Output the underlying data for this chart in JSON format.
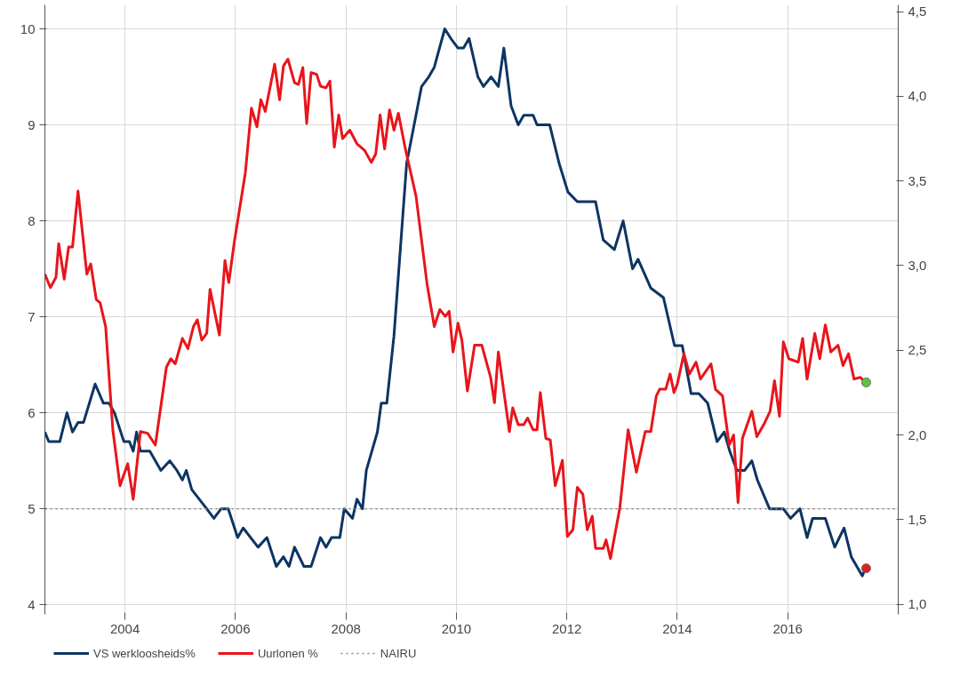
{
  "chart_data": {
    "type": "line",
    "xlim": [
      2002.55,
      2018.0
    ],
    "xticks": [
      2004,
      2006,
      2008,
      2010,
      2012,
      2014,
      2016
    ],
    "ylim": [
      3.9,
      10.25
    ],
    "yticks": [
      4,
      5,
      6,
      7,
      8,
      9,
      10
    ],
    "y2lim": [
      0.94,
      4.54
    ],
    "y2ticks": [
      {
        "value": 1.0,
        "label": "1,0"
      },
      {
        "value": 1.5,
        "label": "1,5"
      },
      {
        "value": 2.0,
        "label": "2,0"
      },
      {
        "value": 2.5,
        "label": "2,5"
      },
      {
        "value": 3.0,
        "label": "3,0"
      },
      {
        "value": 3.5,
        "label": "3,5"
      },
      {
        "value": 4.0,
        "label": "4,0"
      },
      {
        "value": 4.5,
        "label": "4,5"
      }
    ],
    "grid": true,
    "legend": "bottom left",
    "line_style": "solid",
    "series": [
      {
        "name": "VS werkloosheids%",
        "color": "#0d3563",
        "x": [
          2002.55,
          2002.62,
          2002.82,
          2002.95,
          2003.05,
          2003.15,
          2003.25,
          2003.46,
          2003.61,
          2003.71,
          2003.81,
          2003.98,
          2004.08,
          2004.15,
          2004.21,
          2004.28,
          2004.45,
          2004.65,
          2004.81,
          2004.94,
          2005.04,
          2005.11,
          2005.21,
          2005.48,
          2005.61,
          2005.74,
          2005.87,
          2006.04,
          2006.14,
          2006.41,
          2006.57,
          2006.74,
          2006.87,
          2006.97,
          2007.07,
          2007.24,
          2007.37,
          2007.54,
          2007.64,
          2007.74,
          2007.89,
          2007.97,
          2008.12,
          2008.2,
          2008.3,
          2008.37,
          2008.57,
          2008.64,
          2008.74,
          2008.87,
          2009.1,
          2009.37,
          2009.5,
          2009.6,
          2009.79,
          2009.9,
          2010.03,
          2010.13,
          2010.23,
          2010.39,
          2010.49,
          2010.63,
          2010.76,
          2010.86,
          2010.99,
          2011.12,
          2011.22,
          2011.39,
          2011.46,
          2011.69,
          2011.86,
          2012.02,
          2012.19,
          2012.52,
          2012.66,
          2012.86,
          2013.02,
          2013.19,
          2013.29,
          2013.52,
          2013.75,
          2013.95,
          2014.09,
          2014.25,
          2014.39,
          2014.55,
          2014.72,
          2014.85,
          2014.95,
          2015.08,
          2015.22,
          2015.35,
          2015.45,
          2015.67,
          2015.92,
          2016.05,
          2016.22,
          2016.35,
          2016.45,
          2016.68,
          2016.85,
          2017.02,
          2017.15,
          2017.35,
          2017.42
        ],
        "values": [
          5.8,
          5.7,
          5.7,
          6.0,
          5.8,
          5.9,
          5.9,
          6.3,
          6.1,
          6.1,
          6.0,
          5.7,
          5.7,
          5.6,
          5.8,
          5.6,
          5.6,
          5.4,
          5.5,
          5.4,
          5.3,
          5.4,
          5.2,
          5.0,
          4.9,
          5.0,
          5.0,
          4.7,
          4.8,
          4.6,
          4.7,
          4.4,
          4.5,
          4.4,
          4.6,
          4.4,
          4.4,
          4.7,
          4.6,
          4.7,
          4.7,
          5.0,
          4.9,
          5.1,
          5.0,
          5.4,
          5.8,
          6.1,
          6.1,
          6.8,
          8.6,
          9.4,
          9.5,
          9.6,
          10.0,
          9.9,
          9.8,
          9.8,
          9.9,
          9.5,
          9.4,
          9.5,
          9.4,
          9.8,
          9.2,
          9.0,
          9.1,
          9.1,
          9.0,
          9.0,
          8.6,
          8.3,
          8.2,
          8.2,
          7.8,
          7.7,
          8.0,
          7.5,
          7.6,
          7.3,
          7.2,
          6.7,
          6.7,
          6.2,
          6.2,
          6.1,
          5.7,
          5.8,
          5.6,
          5.4,
          5.4,
          5.5,
          5.3,
          5.0,
          5.0,
          4.9,
          5.0,
          4.7,
          4.9,
          4.9,
          4.6,
          4.8,
          4.5,
          4.3,
          4.4
        ]
      },
      {
        "name": "Uurlonen %",
        "axis": "y2",
        "color": "#e8151b",
        "x": [
          2002.55,
          2002.65,
          2002.75,
          2002.8,
          2002.9,
          2002.98,
          2003.05,
          2003.15,
          2003.31,
          2003.38,
          2003.48,
          2003.55,
          2003.65,
          2003.78,
          2003.91,
          2004.05,
          2004.15,
          2004.28,
          2004.41,
          2004.55,
          2004.75,
          2004.83,
          2004.91,
          2005.04,
          2005.14,
          2005.24,
          2005.31,
          2005.39,
          2005.48,
          2005.54,
          2005.71,
          2005.81,
          2005.88,
          2005.98,
          2006.18,
          2006.29,
          2006.39,
          2006.46,
          2006.54,
          2006.71,
          2006.8,
          2006.87,
          2006.95,
          2007.07,
          2007.14,
          2007.22,
          2007.29,
          2007.37,
          2007.47,
          2007.54,
          2007.64,
          2007.71,
          2007.79,
          2007.87,
          2007.94,
          2008.07,
          2008.2,
          2008.34,
          2008.46,
          2008.54,
          2008.62,
          2008.7,
          2008.79,
          2008.87,
          2008.95,
          2009.07,
          2009.27,
          2009.47,
          2009.6,
          2009.7,
          2009.8,
          2009.87,
          2009.94,
          2010.03,
          2010.1,
          2010.2,
          2010.33,
          2010.46,
          2010.62,
          2010.69,
          2010.76,
          2010.96,
          2011.02,
          2011.12,
          2011.22,
          2011.29,
          2011.39,
          2011.46,
          2011.52,
          2011.62,
          2011.7,
          2011.79,
          2011.92,
          2012.01,
          2012.11,
          2012.19,
          2012.29,
          2012.37,
          2012.46,
          2012.52,
          2012.66,
          2012.71,
          2012.79,
          2012.96,
          2013.11,
          2013.26,
          2013.42,
          2013.52,
          2013.62,
          2013.68,
          2013.79,
          2013.87,
          2013.94,
          2014.0,
          2014.12,
          2014.22,
          2014.34,
          2014.42,
          2014.61,
          2014.69,
          2014.82,
          2014.94,
          2015.02,
          2015.1,
          2015.18,
          2015.35,
          2015.44,
          2015.58,
          2015.68,
          2015.76,
          2015.85,
          2015.92,
          2016.02,
          2016.19,
          2016.27,
          2016.35,
          2016.49,
          2016.58,
          2016.68,
          2016.78,
          2016.91,
          2017.0,
          2017.1,
          2017.2,
          2017.31,
          2017.42
        ],
        "values": [
          2.95,
          2.87,
          2.93,
          3.13,
          2.92,
          3.11,
          3.11,
          3.44,
          2.95,
          3.01,
          2.8,
          2.78,
          2.64,
          2.03,
          1.7,
          1.83,
          1.62,
          2.02,
          2.01,
          1.94,
          2.4,
          2.45,
          2.42,
          2.57,
          2.51,
          2.64,
          2.68,
          2.56,
          2.6,
          2.86,
          2.59,
          3.03,
          2.9,
          3.14,
          3.55,
          3.93,
          3.82,
          3.98,
          3.91,
          4.19,
          3.98,
          4.18,
          4.22,
          4.08,
          4.07,
          4.17,
          3.84,
          4.14,
          4.13,
          4.06,
          4.05,
          4.09,
          3.7,
          3.89,
          3.75,
          3.8,
          3.72,
          3.68,
          3.61,
          3.66,
          3.89,
          3.69,
          3.92,
          3.8,
          3.9,
          3.7,
          3.41,
          2.89,
          2.64,
          2.74,
          2.7,
          2.73,
          2.49,
          2.66,
          2.56,
          2.26,
          2.53,
          2.53,
          2.34,
          2.19,
          2.49,
          2.02,
          2.16,
          2.06,
          2.06,
          2.1,
          2.03,
          2.03,
          2.25,
          1.98,
          1.97,
          1.7,
          1.85,
          1.4,
          1.44,
          1.69,
          1.65,
          1.44,
          1.52,
          1.33,
          1.33,
          1.38,
          1.27,
          1.57,
          2.03,
          1.78,
          2.02,
          2.02,
          2.23,
          2.27,
          2.27,
          2.36,
          2.25,
          2.3,
          2.48,
          2.36,
          2.43,
          2.33,
          2.42,
          2.27,
          2.23,
          1.94,
          2.0,
          1.6,
          1.98,
          2.14,
          1.99,
          2.07,
          2.14,
          2.32,
          2.11,
          2.55,
          2.45,
          2.43,
          2.57,
          2.33,
          2.6,
          2.45,
          2.65,
          2.49,
          2.53,
          2.41,
          2.48,
          2.33,
          2.34,
          2.31
        ]
      },
      {
        "type": "scatter",
        "marker": "circle",
        "color": "#e0201e",
        "x": [
          2017.42
        ],
        "values": [
          4.38
        ]
      },
      {
        "type": "scatter",
        "marker": "circle",
        "axis": "y2",
        "color": "#5cc43a",
        "x": [
          2017.42
        ],
        "values": [
          2.31
        ]
      }
    ],
    "ref_lines": [
      {
        "axis": "y",
        "value": 5,
        "label": "NAIRU",
        "color": "#888888",
        "line_style": "dotted"
      }
    ]
  }
}
